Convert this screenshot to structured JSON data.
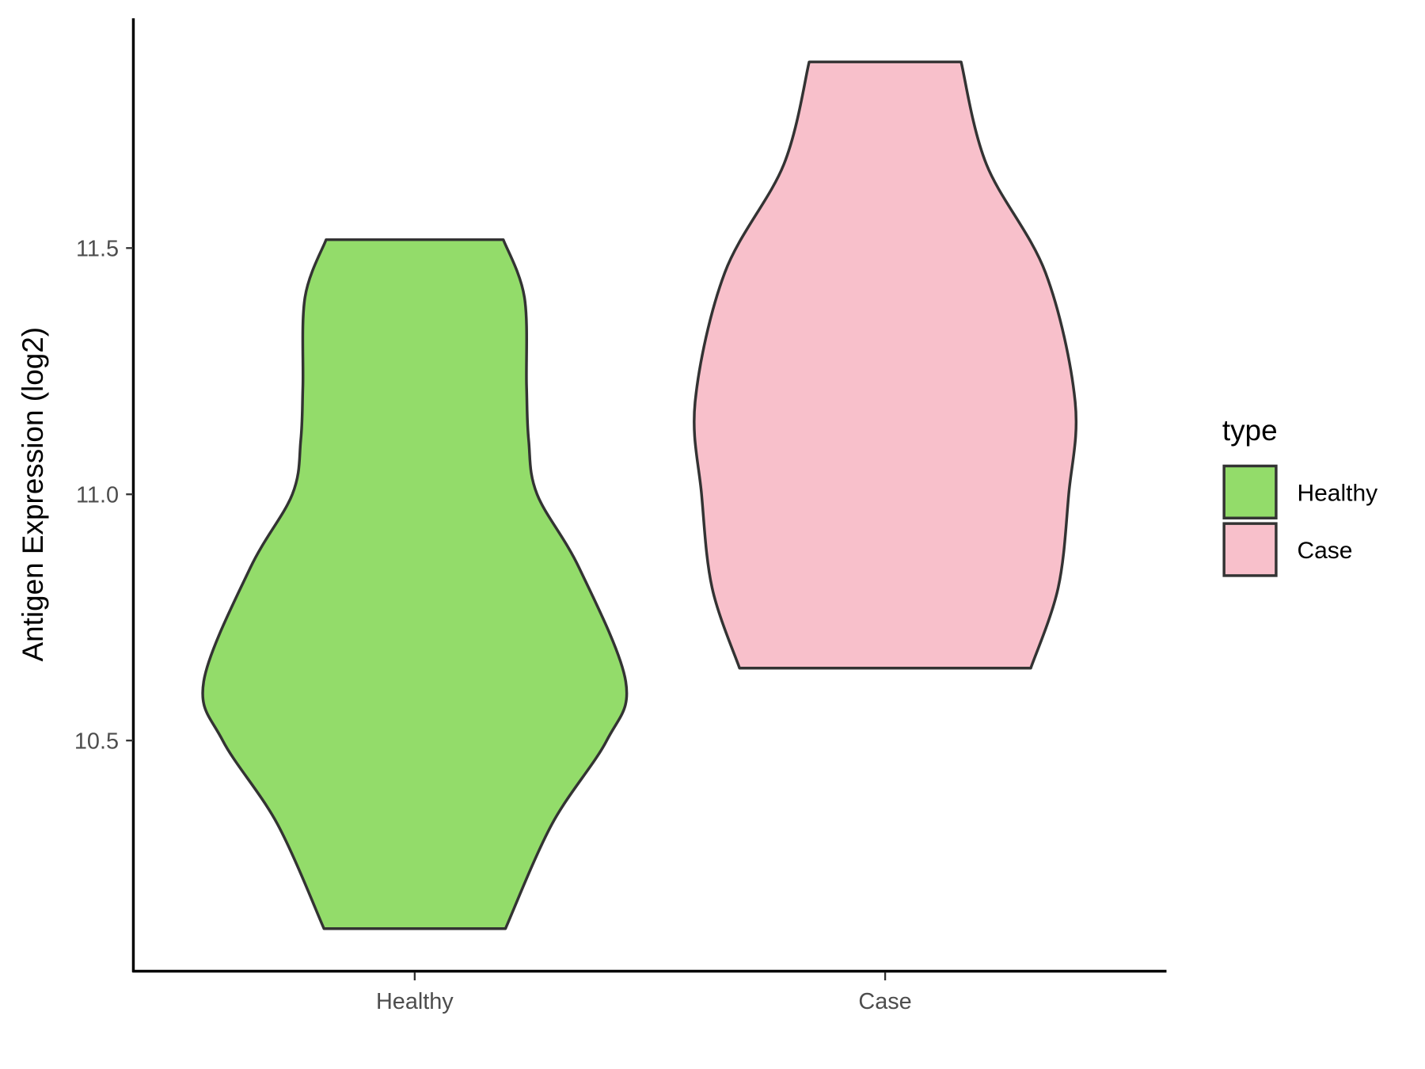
{
  "chart_data": {
    "type": "violin",
    "title": "",
    "xlabel": "",
    "ylabel": "Antigen Expression (log2)",
    "categories": [
      "Healthy",
      "Case"
    ],
    "yticks": [
      10.5,
      11.0,
      11.5
    ],
    "ytick_labels": [
      "10.5",
      "11.0",
      "11.5"
    ],
    "ylim": [
      10.05,
      11.97
    ],
    "grid": false,
    "legend": {
      "title": "type",
      "placement": "right",
      "entries": [
        {
          "label": "Healthy",
          "color": "#93DC6A"
        },
        {
          "label": "Case",
          "color": "#F8C0CB"
        }
      ]
    },
    "series": [
      {
        "name": "Healthy",
        "color": "#93DC6A",
        "min": 10.118,
        "max": 11.517,
        "profile": [
          [
            10.118,
            0.43
          ],
          [
            10.33,
            0.65
          ],
          [
            10.5,
            0.91
          ],
          [
            10.62,
            1.0
          ],
          [
            10.85,
            0.78
          ],
          [
            11.0,
            0.58
          ],
          [
            11.11,
            0.54
          ],
          [
            11.22,
            0.53
          ],
          [
            11.4,
            0.52
          ],
          [
            11.517,
            0.42
          ]
        ]
      },
      {
        "name": "Case",
        "color": "#F8C0CB",
        "min": 10.647,
        "max": 11.878,
        "profile": [
          [
            10.647,
            0.69
          ],
          [
            10.81,
            0.82
          ],
          [
            11.0,
            0.87
          ],
          [
            11.19,
            0.9
          ],
          [
            11.45,
            0.76
          ],
          [
            11.67,
            0.48
          ],
          [
            11.878,
            0.36
          ]
        ]
      }
    ],
    "outline_color": "#333333"
  }
}
